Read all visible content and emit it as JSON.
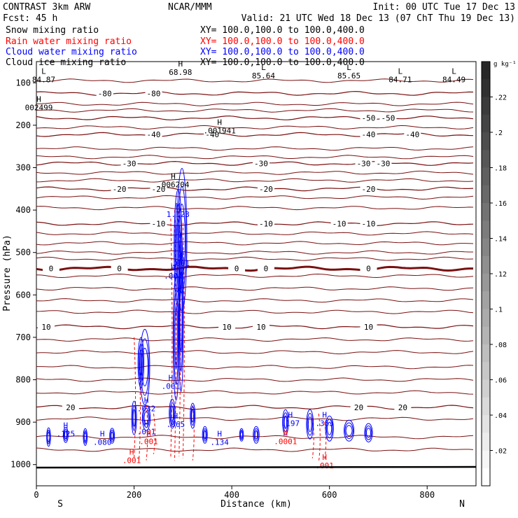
{
  "header": {
    "left_line1": "CONTRAST  3km ARW",
    "left_line2": "Fcst:    45 h",
    "center": "NCAR/MMM",
    "init": "Init: 00 UTC Tue 17 Dec 13",
    "valid": "Valid: 21 UTC Wed 18 Dec 13 (07 ChT Thu 19 Dec 13)"
  },
  "chart_data": {
    "type": "cross-section",
    "series": [
      {
        "name": "Snow mixing ratio",
        "color": "#000000",
        "xy": "XY= 100.0,100.0 to 100.0,400.0"
      },
      {
        "name": "Rain water mixing ratio",
        "color": "#ff0000",
        "xy": "XY= 100.0,100.0 to 100.0,400.0"
      },
      {
        "name": "Cloud water mixing ratio",
        "color": "#0000ff",
        "xy": "XY= 100.0,100.0 to 100.0,400.0"
      },
      {
        "name": "Cloud ice mixing ratio",
        "color": "#000000",
        "xy": "XY= 100.0,100.0 to 100.0,400.0"
      }
    ],
    "xlabel": "Distance (km)",
    "ylabel": "Pressure (hPa)",
    "xlim": [
      0,
      900
    ],
    "ylim": [
      1050,
      50
    ],
    "x_ticks": [
      0,
      200,
      400,
      600,
      800
    ],
    "y_ticks": [
      100,
      200,
      300,
      400,
      500,
      600,
      700,
      800,
      900,
      1000
    ],
    "x_ends": [
      "S",
      "N"
    ],
    "colorbar": {
      "unit": "g kg⁻¹",
      "ticks": [
        ".02",
        ".04",
        ".06",
        ".08",
        ".1",
        ".12",
        ".14",
        ".16",
        ".18",
        ".2",
        ".22"
      ],
      "max": 0.24
    },
    "temperature_contours": [
      {
        "value": -80,
        "pressure": 125,
        "labels": [
          {
            "x": 140,
            "text": "-80"
          },
          {
            "x": 240,
            "text": "-80"
          }
        ]
      },
      {
        "value": -50,
        "pressure": 183,
        "labels": [
          {
            "x": 680,
            "text": "-50"
          },
          {
            "x": 720,
            "text": "-50"
          }
        ]
      },
      {
        "value": -40,
        "pressure": 222,
        "labels": [
          {
            "x": 240,
            "text": "-40"
          },
          {
            "x": 360,
            "text": "-40"
          },
          {
            "x": 680,
            "text": "-40"
          },
          {
            "x": 770,
            "text": "-40"
          }
        ]
      },
      {
        "value": -30,
        "pressure": 290,
        "labels": [
          {
            "x": 190,
            "text": "-30"
          },
          {
            "x": 460,
            "text": "-30"
          },
          {
            "x": 670,
            "text": "-30"
          },
          {
            "x": 710,
            "text": "-30"
          }
        ]
      },
      {
        "value": -20,
        "pressure": 350,
        "labels": [
          {
            "x": 170,
            "text": "-20"
          },
          {
            "x": 250,
            "text": "-20"
          },
          {
            "x": 470,
            "text": "-20"
          },
          {
            "x": 680,
            "text": "-20"
          }
        ]
      },
      {
        "value": -10,
        "pressure": 432,
        "labels": [
          {
            "x": 250,
            "text": "-10"
          },
          {
            "x": 470,
            "text": "-10"
          },
          {
            "x": 620,
            "text": "-10"
          },
          {
            "x": 680,
            "text": "-10"
          }
        ]
      },
      {
        "value": 0,
        "pressure": 538,
        "labels": [
          {
            "x": 30,
            "text": "0"
          },
          {
            "x": 170,
            "text": "0"
          },
          {
            "x": 410,
            "text": "0"
          },
          {
            "x": 470,
            "text": "0"
          },
          {
            "x": 680,
            "text": "0"
          }
        ]
      },
      {
        "value": 10,
        "pressure": 675,
        "labels": [
          {
            "x": 20,
            "text": "10"
          },
          {
            "x": 390,
            "text": "10"
          },
          {
            "x": 460,
            "text": "10"
          },
          {
            "x": 680,
            "text": "10"
          }
        ]
      },
      {
        "value": 20,
        "pressure": 865,
        "labels": [
          {
            "x": 70,
            "text": "20"
          },
          {
            "x": 750,
            "text": "20"
          },
          {
            "x": 660,
            "text": "20"
          }
        ]
      }
    ],
    "extra_contour_pressures": [
      95,
      150,
      165,
      205,
      255,
      275,
      312,
      330,
      370,
      395,
      455,
      478,
      500,
      515,
      555,
      585,
      613,
      640,
      705,
      735,
      770,
      800,
      830,
      892,
      935,
      965
    ],
    "H_L_labels": [
      {
        "type": "L",
        "x": 15,
        "p": 82,
        "value": "84.87",
        "color": "#000000"
      },
      {
        "type": "H",
        "x": 295,
        "p": 65,
        "value": "68.98",
        "color": "#000000"
      },
      {
        "type": "L",
        "x": 465,
        "p": 73,
        "value": "85.64",
        "color": "#000000"
      },
      {
        "type": "L",
        "x": 640,
        "p": 73,
        "value": "85.65",
        "color": "#000000"
      },
      {
        "type": "L",
        "x": 745,
        "p": 82,
        "value": "84.71",
        "color": "#000000"
      },
      {
        "type": "L",
        "x": 855,
        "p": 82,
        "value": "84.49",
        "color": "#000000"
      },
      {
        "type": "H",
        "x": 5,
        "p": 148,
        "value": "002499",
        "color": "#000000"
      },
      {
        "type": "H",
        "x": 375,
        "p": 203,
        "value": ".001941",
        "color": "#000000"
      },
      {
        "type": "H",
        "x": 280,
        "p": 330,
        "value": ".006204",
        "color": "#000000"
      },
      {
        "type": "H",
        "x": 290,
        "p": 400,
        "value": "1.123",
        "color": "#0000ff"
      },
      {
        "type": "H",
        "x": 295,
        "p": 515,
        "value": ".001",
        "color": "#0000ff"
      },
      {
        "type": "H",
        "x": 280,
        "p": 545,
        "value": ".001",
        "color": "#0000ff"
      },
      {
        "type": "H",
        "x": 275,
        "p": 805,
        "value": ".001",
        "color": "#0000ff"
      },
      {
        "type": "H",
        "x": 225,
        "p": 858,
        "value": ".032",
        "color": "#0000ff"
      },
      {
        "type": "H",
        "x": 225,
        "p": 912,
        "value": ".001",
        "color": "#0000ff"
      },
      {
        "type": "H",
        "x": 285,
        "p": 895,
        "value": ".065",
        "color": "#0000ff"
      },
      {
        "type": "H",
        "x": 60,
        "p": 917,
        "value": ".125",
        "color": "#0000ff"
      },
      {
        "type": "H",
        "x": 135,
        "p": 937,
        "value": ".080",
        "color": "#0000ff"
      },
      {
        "type": "H",
        "x": 375,
        "p": 937,
        "value": ".134",
        "color": "#0000ff"
      },
      {
        "type": "H",
        "x": 520,
        "p": 892,
        "value": ".197",
        "color": "#0000ff"
      },
      {
        "type": "H",
        "x": 590,
        "p": 892,
        "value": ".353",
        "color": "#0000ff"
      },
      {
        "type": "H",
        "x": 510,
        "p": 935,
        "value": ".0001",
        "color": "#ff0000"
      },
      {
        "type": "H",
        "x": 195,
        "p": 980,
        "value": ".001",
        "color": "#ff0000"
      },
      {
        "type": "H",
        "x": 230,
        "p": 935,
        "value": ".001",
        "color": "#ff0000"
      },
      {
        "type": "H",
        "x": 590,
        "p": 992,
        "value": ".001",
        "color": "#ff0000"
      }
    ]
  }
}
